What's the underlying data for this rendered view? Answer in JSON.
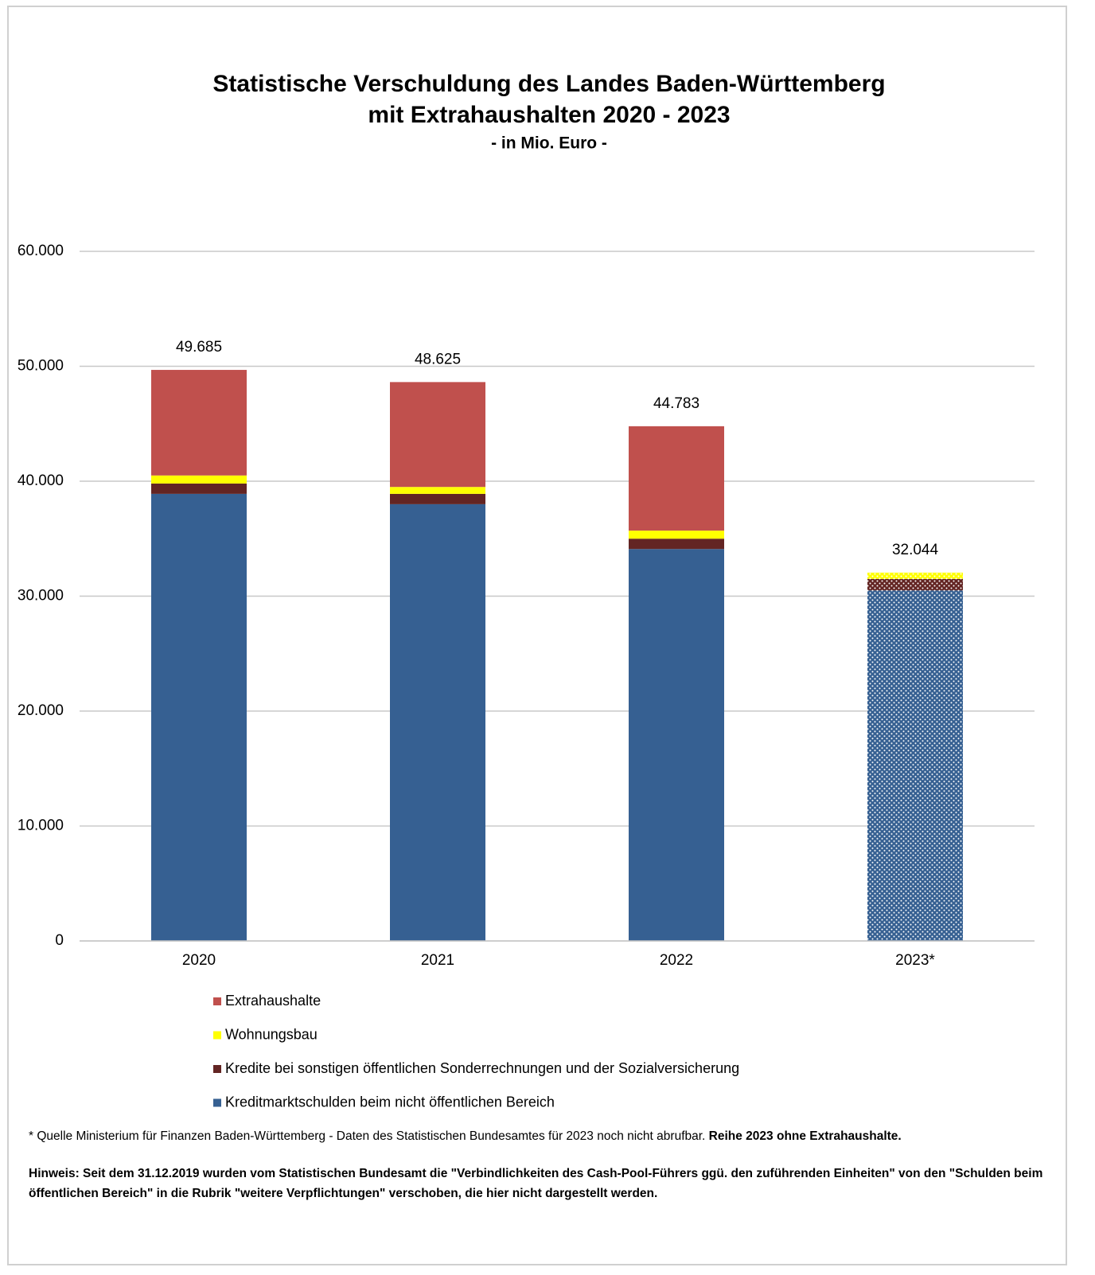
{
  "chart_data": {
    "type": "stacked_bar",
    "title": [
      "Statistische Verschuldung des Landes Baden-Württemberg",
      "mit Extrahaushalten 2020 - 2023"
    ],
    "subtitle": "- in Mio. Euro -",
    "categories": [
      "2020",
      "2021",
      "2022",
      "2023*"
    ],
    "series": [
      {
        "name": "Kreditmarktschulden beim nicht öffentlichen Bereich",
        "color": "#366092",
        "values": [
          38900,
          38000,
          34100,
          30500
        ]
      },
      {
        "name": "Kredite bei sonstigen öffentlichen Sonderrechnungen und der Sozialversicherung",
        "color": "#632523",
        "values": [
          900,
          900,
          900,
          1000
        ]
      },
      {
        "name": "Wohnungsbau",
        "color": "#ffff00",
        "values": [
          700,
          600,
          700,
          544
        ]
      },
      {
        "name": "Extrahaushalte",
        "color": "#c0504d",
        "values": [
          9185,
          9125,
          9083,
          null
        ]
      }
    ],
    "totals": {
      "values": [
        49685,
        48625,
        44783,
        32044
      ],
      "value_labels": [
        "49.685",
        "48.625",
        "44.783",
        "32.044"
      ]
    },
    "patterned": [
      false,
      false,
      false,
      true
    ],
    "ylim": [
      0,
      60000
    ],
    "yticks": [
      0,
      {
        "value": 10000,
        "label": "10.000"
      },
      {
        "value": 20000,
        "label": "20.000"
      },
      {
        "value": 30000,
        "label": "30.000"
      },
      {
        "value": 40000,
        "label": "40.000"
      },
      {
        "value": 50000,
        "label": "50.000"
      },
      {
        "value": 60000,
        "label": "60.000"
      }
    ],
    "grid": true,
    "footnote": [
      "* Quelle Ministerium für Finanzen Baden-Württemberg - Daten des Statistischen Bundesamtes für 2023 noch nicht abrufbar. ",
      "Reihe 2023 ohne Extrahaushalte."
    ],
    "note": "Hinweis:  Seit dem 31.12.2019 wurden vom Statistischen Bundesamt die \"Verbindlichkeiten des Cash-Pool-Führers ggü. den zuführenden Einheiten\" von den \"Schulden beim öffentlichen Bereich\" in die Rubrik \"weitere Verpflichtungen\" verschoben, die hier nicht dargestellt werden."
  }
}
